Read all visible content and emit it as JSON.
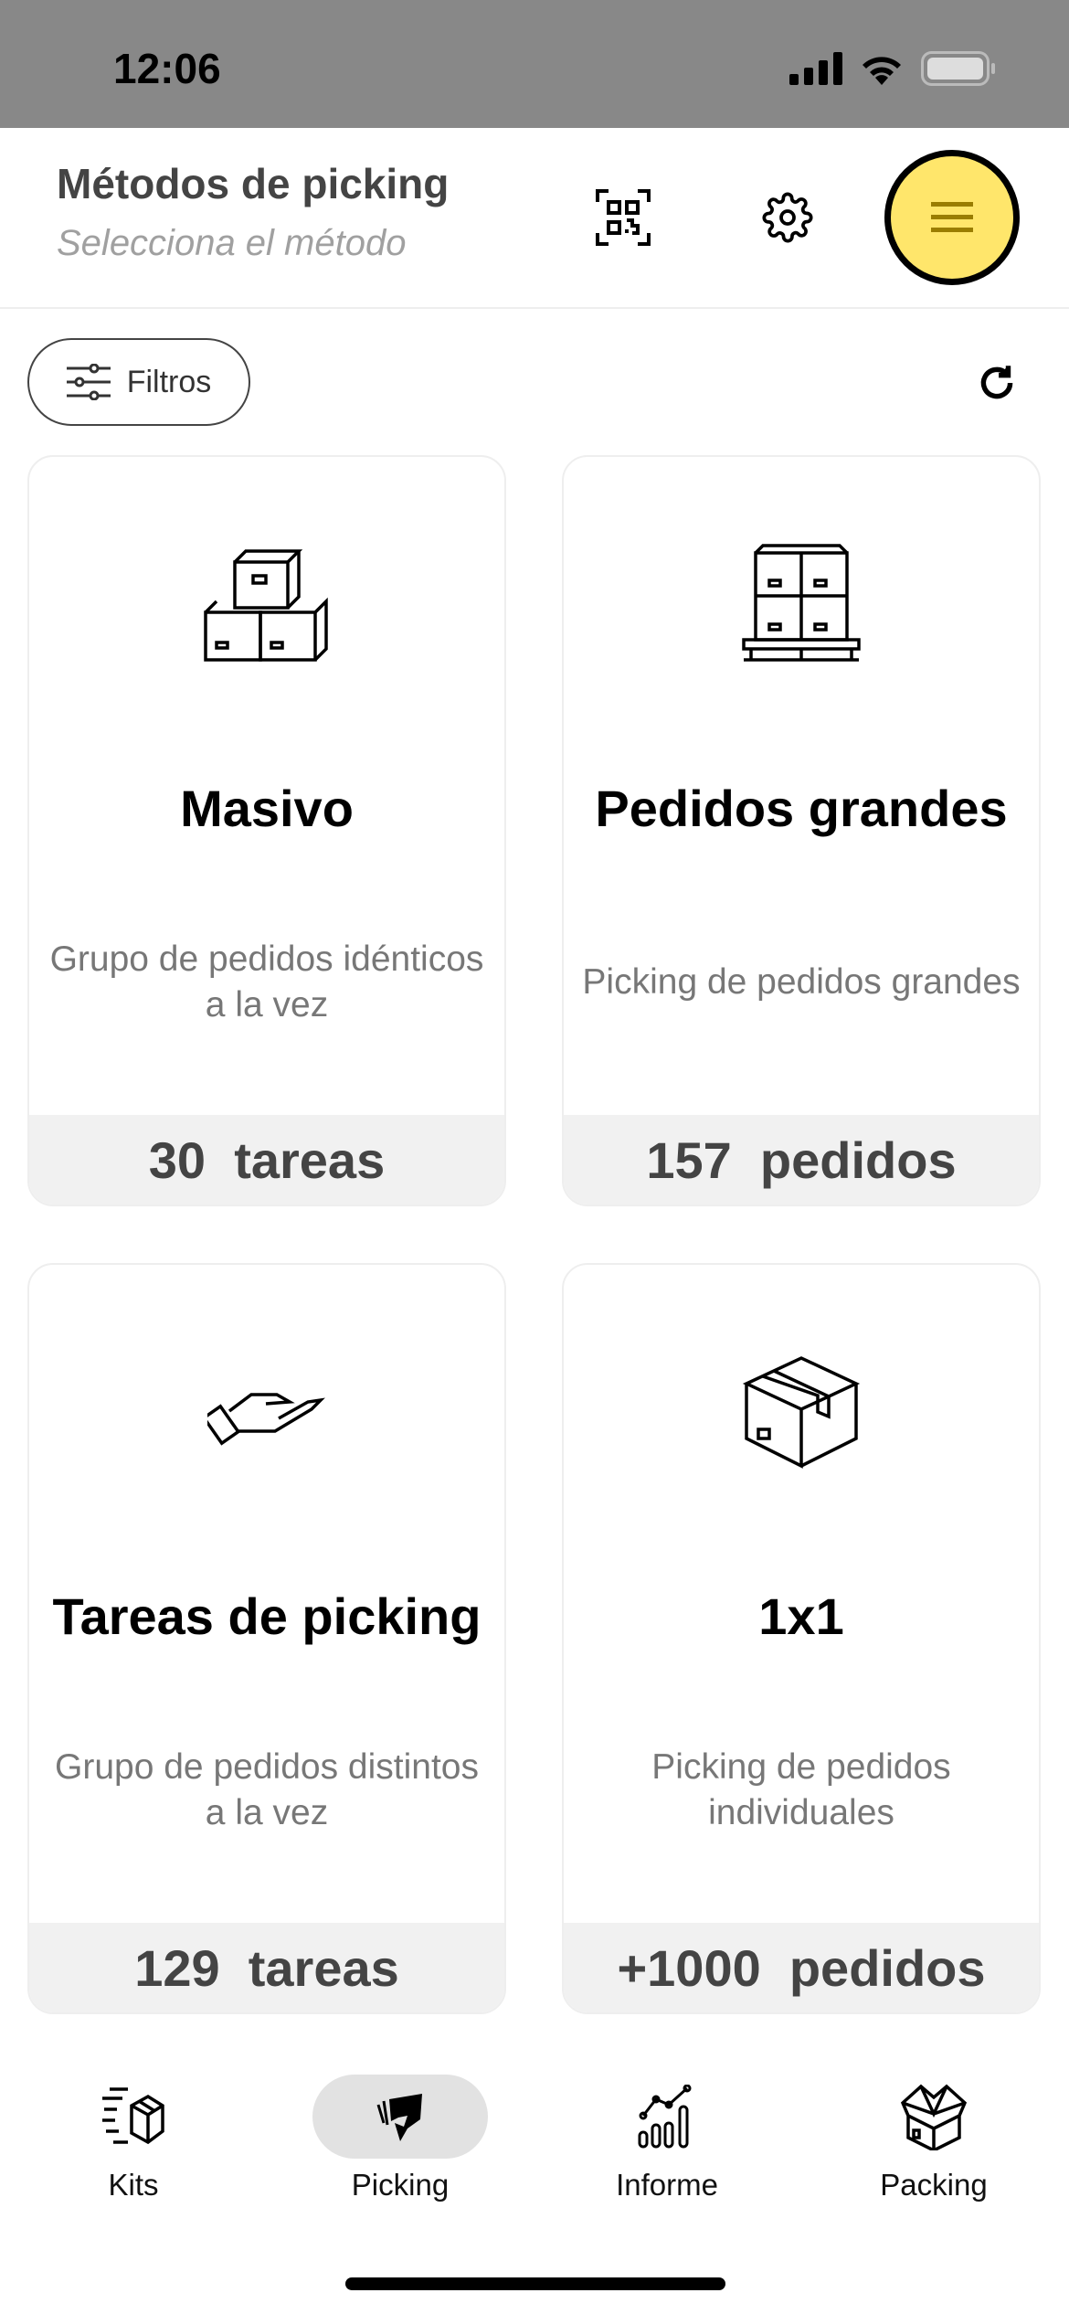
{
  "status_bar": {
    "time": "12:06"
  },
  "header": {
    "title": "Métodos de picking",
    "subtitle": "Selecciona el método"
  },
  "toolbar": {
    "filter_label": "Filtros"
  },
  "cards": [
    {
      "title": "Masivo",
      "description": "Grupo de pedidos idénticos a la vez",
      "count": "30  tareas",
      "icon": "stacked-boxes-icon"
    },
    {
      "title": "Pedidos grandes",
      "description": "Picking de pedidos grandes",
      "count": "157  pedidos",
      "icon": "pallet-boxes-icon"
    },
    {
      "title": "Tareas de picking",
      "description": "Grupo de pedidos distintos a la vez",
      "count": "129  tareas",
      "icon": "open-hand-icon"
    },
    {
      "title": "1x1",
      "description": "Picking de pedidos individuales",
      "count": "+1000  pedidos",
      "icon": "box-icon"
    }
  ],
  "bottom_nav": [
    {
      "label": "Kits",
      "icon": "fast-box-icon"
    },
    {
      "label": "Picking",
      "icon": "hand-picking-icon",
      "active": true
    },
    {
      "label": "Informe",
      "icon": "chart-icon"
    },
    {
      "label": "Packing",
      "icon": "open-box-icon"
    }
  ],
  "colors": {
    "menu_button": "#ffe66b",
    "status_bar": "#888888",
    "footer_band": "#f1f1f1"
  }
}
